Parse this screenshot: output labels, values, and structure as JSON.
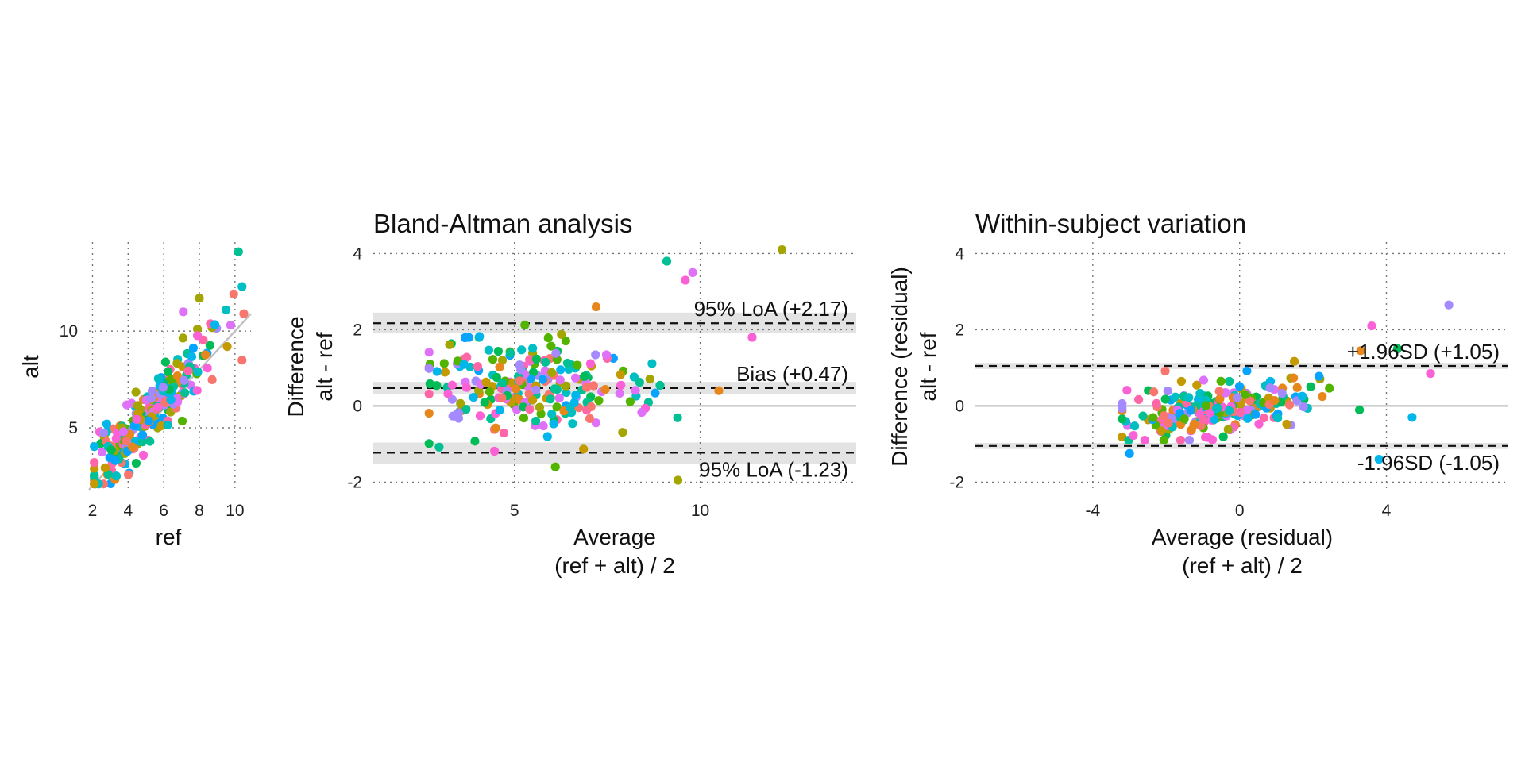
{
  "colors": {
    "grid": "#777777",
    "zero_line": "#bfbfbf",
    "band": "#e3e3e3",
    "identity_line": "#c0c0c0",
    "palette": [
      "#f8766d",
      "#e7861b",
      "#c49a00",
      "#a3a500",
      "#53b400",
      "#00bc56",
      "#00c094",
      "#00bfc4",
      "#00b6eb",
      "#06a4ff",
      "#a58aff",
      "#df70f8",
      "#fb61d7",
      "#ff66a8"
    ]
  },
  "chart_data": [
    {
      "type": "scatter",
      "title": "",
      "xlabel": "ref",
      "ylabel": "alt",
      "xlim": [
        1.8,
        10.9
      ],
      "ylim": [
        1.8,
        14.6
      ],
      "xticks": [
        2,
        4,
        6,
        8,
        10
      ],
      "yticks": [
        5,
        10
      ],
      "grid": true,
      "identity_line": true,
      "points_generated": {
        "n": 230,
        "seed": 11,
        "kind": "corr",
        "x_center": 5.0,
        "x_sd": 1.7,
        "x_min": 2.1,
        "x_max": 10.4,
        "noise_sd": 0.85,
        "bias": 0.47
      },
      "extra_points": [
        [
          10.2,
          14.1
        ],
        [
          10.4,
          12.3
        ],
        [
          10.5,
          10.9
        ],
        [
          10.4,
          8.5
        ],
        [
          9.5,
          11.1
        ],
        [
          8.0,
          11.7
        ],
        [
          7.1,
          11.0
        ]
      ]
    },
    {
      "type": "scatter",
      "title": "Bland-Altman analysis",
      "xlabel": [
        "Average",
        "(ref + alt) / 2"
      ],
      "ylabel": [
        "Difference",
        "alt - ref"
      ],
      "xlim": [
        1.2,
        14.2
      ],
      "ylim": [
        -2.2,
        4.3
      ],
      "xticks": [
        5,
        10
      ],
      "yticks": [
        -2,
        0,
        2,
        4
      ],
      "grid": true,
      "zero_line": true,
      "bands": [
        [
          1.91,
          2.45
        ],
        [
          0.31,
          0.63
        ],
        [
          -1.52,
          -0.96
        ]
      ],
      "hlines": [
        {
          "y": 2.17,
          "label": "95% LoA (+2.17)"
        },
        {
          "y": 0.47,
          "label": "Bias (+0.47)"
        },
        {
          "y": -1.23,
          "label": "95% LoA (-1.23)"
        }
      ],
      "points_generated": {
        "n": 230,
        "seed": 23,
        "kind": "diff",
        "x_center": 5.3,
        "x_sd": 1.5,
        "x_min": 2.7,
        "x_max": 11.5,
        "y_mean": 0.47,
        "y_sd": 0.65,
        "y_min": -1.7,
        "y_max": 2.9
      },
      "extra_points": [
        [
          12.2,
          4.1
        ],
        [
          9.8,
          3.5
        ],
        [
          9.1,
          3.8
        ],
        [
          9.4,
          -1.95
        ],
        [
          9.6,
          3.3
        ],
        [
          10.5,
          0.4
        ],
        [
          11.4,
          1.8
        ],
        [
          6.1,
          -1.6
        ]
      ]
    },
    {
      "type": "scatter",
      "title": "Within-subject variation",
      "xlabel": [
        "Average (residual)",
        "(ref + alt) / 2"
      ],
      "ylabel": [
        "Difference (residual)",
        "alt - ref"
      ],
      "xlim": [
        -7.2,
        7.3
      ],
      "ylim": [
        -2.2,
        4.3
      ],
      "xticks": [
        -4,
        0,
        4
      ],
      "yticks": [
        -2,
        0,
        2,
        4
      ],
      "grid": true,
      "zero_line": true,
      "bands": [
        [
          0.97,
          1.13
        ],
        [
          -1.13,
          -0.97
        ]
      ],
      "hlines": [
        {
          "y": 1.05,
          "label": "+1.96SD (+1.05)"
        },
        {
          "y": -1.05,
          "label": "-1.96SD (-1.05)"
        }
      ],
      "points_generated": {
        "n": 230,
        "seed": 37,
        "kind": "resid",
        "x_center": -0.5,
        "x_sd": 1.3,
        "x_min": -3.2,
        "x_max": 4.8,
        "y_mean": 0.0,
        "y_sd": 0.3,
        "slope": 0.12,
        "y_min": -0.9,
        "y_max": 1.5
      },
      "extra_points": [
        [
          5.7,
          2.65
        ],
        [
          3.6,
          2.1
        ],
        [
          4.7,
          -0.3
        ],
        [
          -3.0,
          -1.25
        ],
        [
          3.8,
          -1.4
        ],
        [
          4.3,
          1.5
        ],
        [
          3.3,
          1.45
        ],
        [
          5.2,
          0.85
        ]
      ]
    }
  ]
}
